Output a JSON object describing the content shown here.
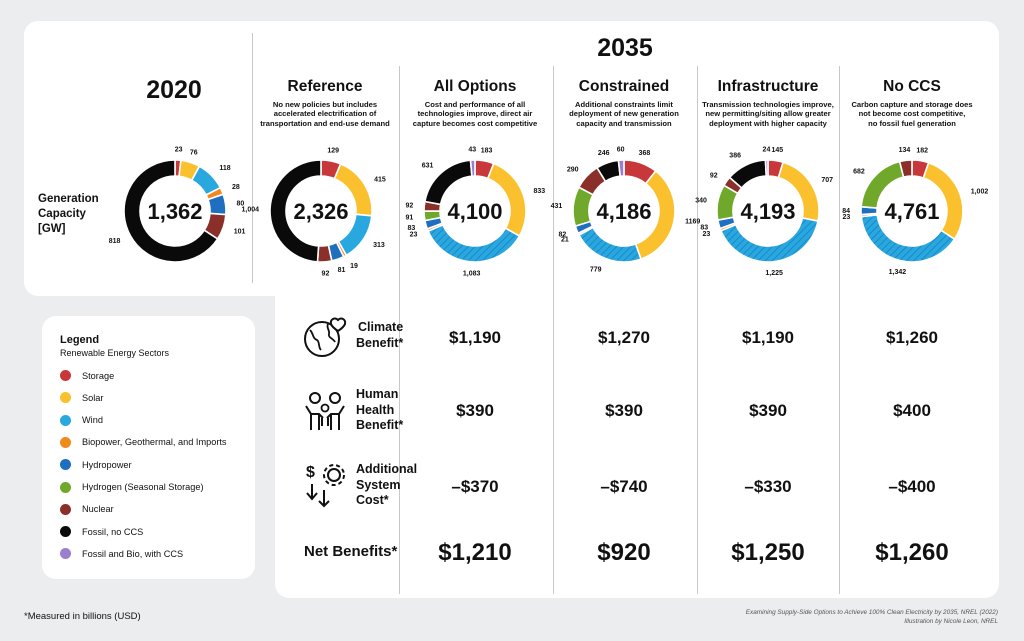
{
  "header": {
    "year_2035": "2035",
    "year_2020": "2020"
  },
  "gen_capacity_label": [
    "Generation",
    "Capacity",
    "[GW]"
  ],
  "scenarios": [
    {
      "name": "Reference",
      "desc": [
        "No new policies but includes",
        "accelerated electrification of",
        "transportation and end-use demand"
      ]
    },
    {
      "name": "All Options",
      "desc": [
        "Cost and performance of all",
        "technologies improve, direct air",
        "capture becomes cost competitive"
      ]
    },
    {
      "name": "Constrained",
      "desc": [
        "Additional constraints limit",
        "deployment of new generation",
        "capacity and transmission"
      ]
    },
    {
      "name": "Infrastructure",
      "desc": [
        "Transmission technologies improve,",
        "new permitting/siting allow greater",
        "deployment with higher capacity"
      ]
    },
    {
      "name": "No CCS",
      "desc": [
        "Carbon capture and storage does",
        "not become cost competitive,",
        "no fossil fuel generation"
      ]
    }
  ],
  "colors": {
    "storage": "#c8373a",
    "solar": "#fbc02d",
    "wind": "#29a8e0",
    "bio": "#f08a1c",
    "hydro": "#1e6fbf",
    "hydrogen": "#6fa82a",
    "nuclear": "#8b2f2a",
    "fossil": "#0a0a0a",
    "fossil_ccs": "#9b7fcf"
  },
  "legend": {
    "title": "Legend",
    "subtitle": "Renewable Energy Sectors",
    "items": [
      {
        "key": "storage",
        "label": "Storage"
      },
      {
        "key": "solar",
        "label": "Solar"
      },
      {
        "key": "wind",
        "label": "Wind"
      },
      {
        "key": "bio",
        "label": "Biopower, Geothermal, and Imports"
      },
      {
        "key": "hydro",
        "label": "Hydropower"
      },
      {
        "key": "hydrogen",
        "label": "Hydrogen (Seasonal Storage)"
      },
      {
        "key": "nuclear",
        "label": "Nuclear"
      },
      {
        "key": "fossil",
        "label": "Fossil, no CCS"
      },
      {
        "key": "fossil_ccs",
        "label": "Fossil and Bio, with CCS"
      }
    ]
  },
  "rows": {
    "climate": {
      "label": [
        "Climate",
        "Benefit*"
      ],
      "icon": "globe-heart-icon",
      "values": [
        "$1,190",
        "$1,270",
        "$1,190",
        "$1,260"
      ]
    },
    "health": {
      "label": [
        "Human",
        "Health",
        "Benefit*"
      ],
      "icon": "people-icon",
      "values": [
        "$390",
        "$390",
        "$390",
        "$400"
      ]
    },
    "cost": {
      "label": [
        "Additional",
        "System",
        "Cost*"
      ],
      "icon": "gear-dollar-icon",
      "values": [
        "–$370",
        "–$740",
        "–$330",
        "–$400"
      ]
    },
    "net": {
      "label": "Net Benefits*",
      "values": [
        "$1,210",
        "$920",
        "$1,250",
        "$1,260"
      ]
    }
  },
  "footnote": "*Measured in billions (USD)",
  "credit": [
    "Examining Supply-Side Options to Achieve 100% Clean Electricity by 2035, NREL (2022)",
    "Illustration by Nicole Leon, NREL"
  ],
  "chart_data": [
    {
      "type": "pie",
      "title": "2020",
      "total": "1,362",
      "slices": [
        {
          "sector": "storage",
          "value": 23,
          "label": "23"
        },
        {
          "sector": "solar",
          "value": 76,
          "label": "76"
        },
        {
          "sector": "wind",
          "value": 118,
          "label": "118"
        },
        {
          "sector": "bio",
          "value": 28,
          "label": "28"
        },
        {
          "sector": "hydro",
          "value": 80,
          "label": "80"
        },
        {
          "sector": "nuclear",
          "value": 101,
          "label": "101"
        },
        {
          "sector": "fossil",
          "value": 818,
          "label": "818"
        }
      ]
    },
    {
      "type": "pie",
      "title": "Reference",
      "total": "2,326",
      "slices": [
        {
          "sector": "storage",
          "value": 129,
          "label": "129"
        },
        {
          "sector": "solar",
          "value": 415,
          "label": "415"
        },
        {
          "sector": "wind",
          "value": 313,
          "label": "313"
        },
        {
          "sector": "bio",
          "value": 19,
          "label": "19"
        },
        {
          "sector": "hydro",
          "value": 81,
          "label": "81"
        },
        {
          "sector": "nuclear",
          "value": 92,
          "label": "92"
        },
        {
          "sector": "fossil",
          "value": 1004,
          "label": "1,004"
        }
      ]
    },
    {
      "type": "pie",
      "title": "All Options",
      "total": "4,100",
      "slices": [
        {
          "sector": "storage",
          "value": 183,
          "label": "183"
        },
        {
          "sector": "solar",
          "value": 833,
          "label": "833"
        },
        {
          "sector": "wind",
          "value": 1083,
          "label": "1,083"
        },
        {
          "sector": "bio",
          "value": 23,
          "label": "23"
        },
        {
          "sector": "hydro",
          "value": 83,
          "label": "83"
        },
        {
          "sector": "hydrogen",
          "value": 91,
          "label": "91"
        },
        {
          "sector": "nuclear",
          "value": 92,
          "label": "92"
        },
        {
          "sector": "fossil",
          "value": 631,
          "label": "631"
        },
        {
          "sector": "fossil_ccs",
          "value": 43,
          "label": "43"
        }
      ]
    },
    {
      "type": "pie",
      "title": "Constrained",
      "total": "4,186",
      "slices": [
        {
          "sector": "storage",
          "value": 368,
          "label": "368"
        },
        {
          "sector": "solar",
          "value": 1169,
          "label": "1169"
        },
        {
          "sector": "wind",
          "value": 779,
          "label": "779"
        },
        {
          "sector": "bio",
          "value": 21,
          "label": "21"
        },
        {
          "sector": "hydro",
          "value": 82,
          "label": "82"
        },
        {
          "sector": "hydrogen",
          "value": 431,
          "label": "431"
        },
        {
          "sector": "nuclear",
          "value": 290,
          "label": "290"
        },
        {
          "sector": "fossil",
          "value": 246,
          "label": "246"
        },
        {
          "sector": "fossil_ccs",
          "value": 60,
          "label": "60"
        }
      ]
    },
    {
      "type": "pie",
      "title": "Infrastructure",
      "total": "4,193",
      "slices": [
        {
          "sector": "storage",
          "value": 145,
          "label": "145"
        },
        {
          "sector": "solar",
          "value": 707,
          "label": "707"
        },
        {
          "sector": "wind",
          "value": 1225,
          "label": "1,225"
        },
        {
          "sector": "bio",
          "value": 23,
          "label": "23"
        },
        {
          "sector": "hydro",
          "value": 83,
          "label": "83"
        },
        {
          "sector": "hydrogen",
          "value": 340,
          "label": "340"
        },
        {
          "sector": "nuclear",
          "value": 92,
          "label": "92"
        },
        {
          "sector": "fossil",
          "value": 386,
          "label": "386"
        },
        {
          "sector": "fossil_ccs",
          "value": 24,
          "label": "24"
        }
      ]
    },
    {
      "type": "pie",
      "title": "No CCS",
      "total": "4,761",
      "slices": [
        {
          "sector": "storage",
          "value": 182,
          "label": "182"
        },
        {
          "sector": "solar",
          "value": 1002,
          "label": "1,002"
        },
        {
          "sector": "wind",
          "value": 1342,
          "label": "1,342"
        },
        {
          "sector": "bio",
          "value": 23,
          "label": "23"
        },
        {
          "sector": "hydro",
          "value": 84,
          "label": "84"
        },
        {
          "sector": "hydrogen",
          "value": 682,
          "label": "682"
        },
        {
          "sector": "nuclear",
          "value": 134,
          "label": "134"
        }
      ]
    }
  ]
}
